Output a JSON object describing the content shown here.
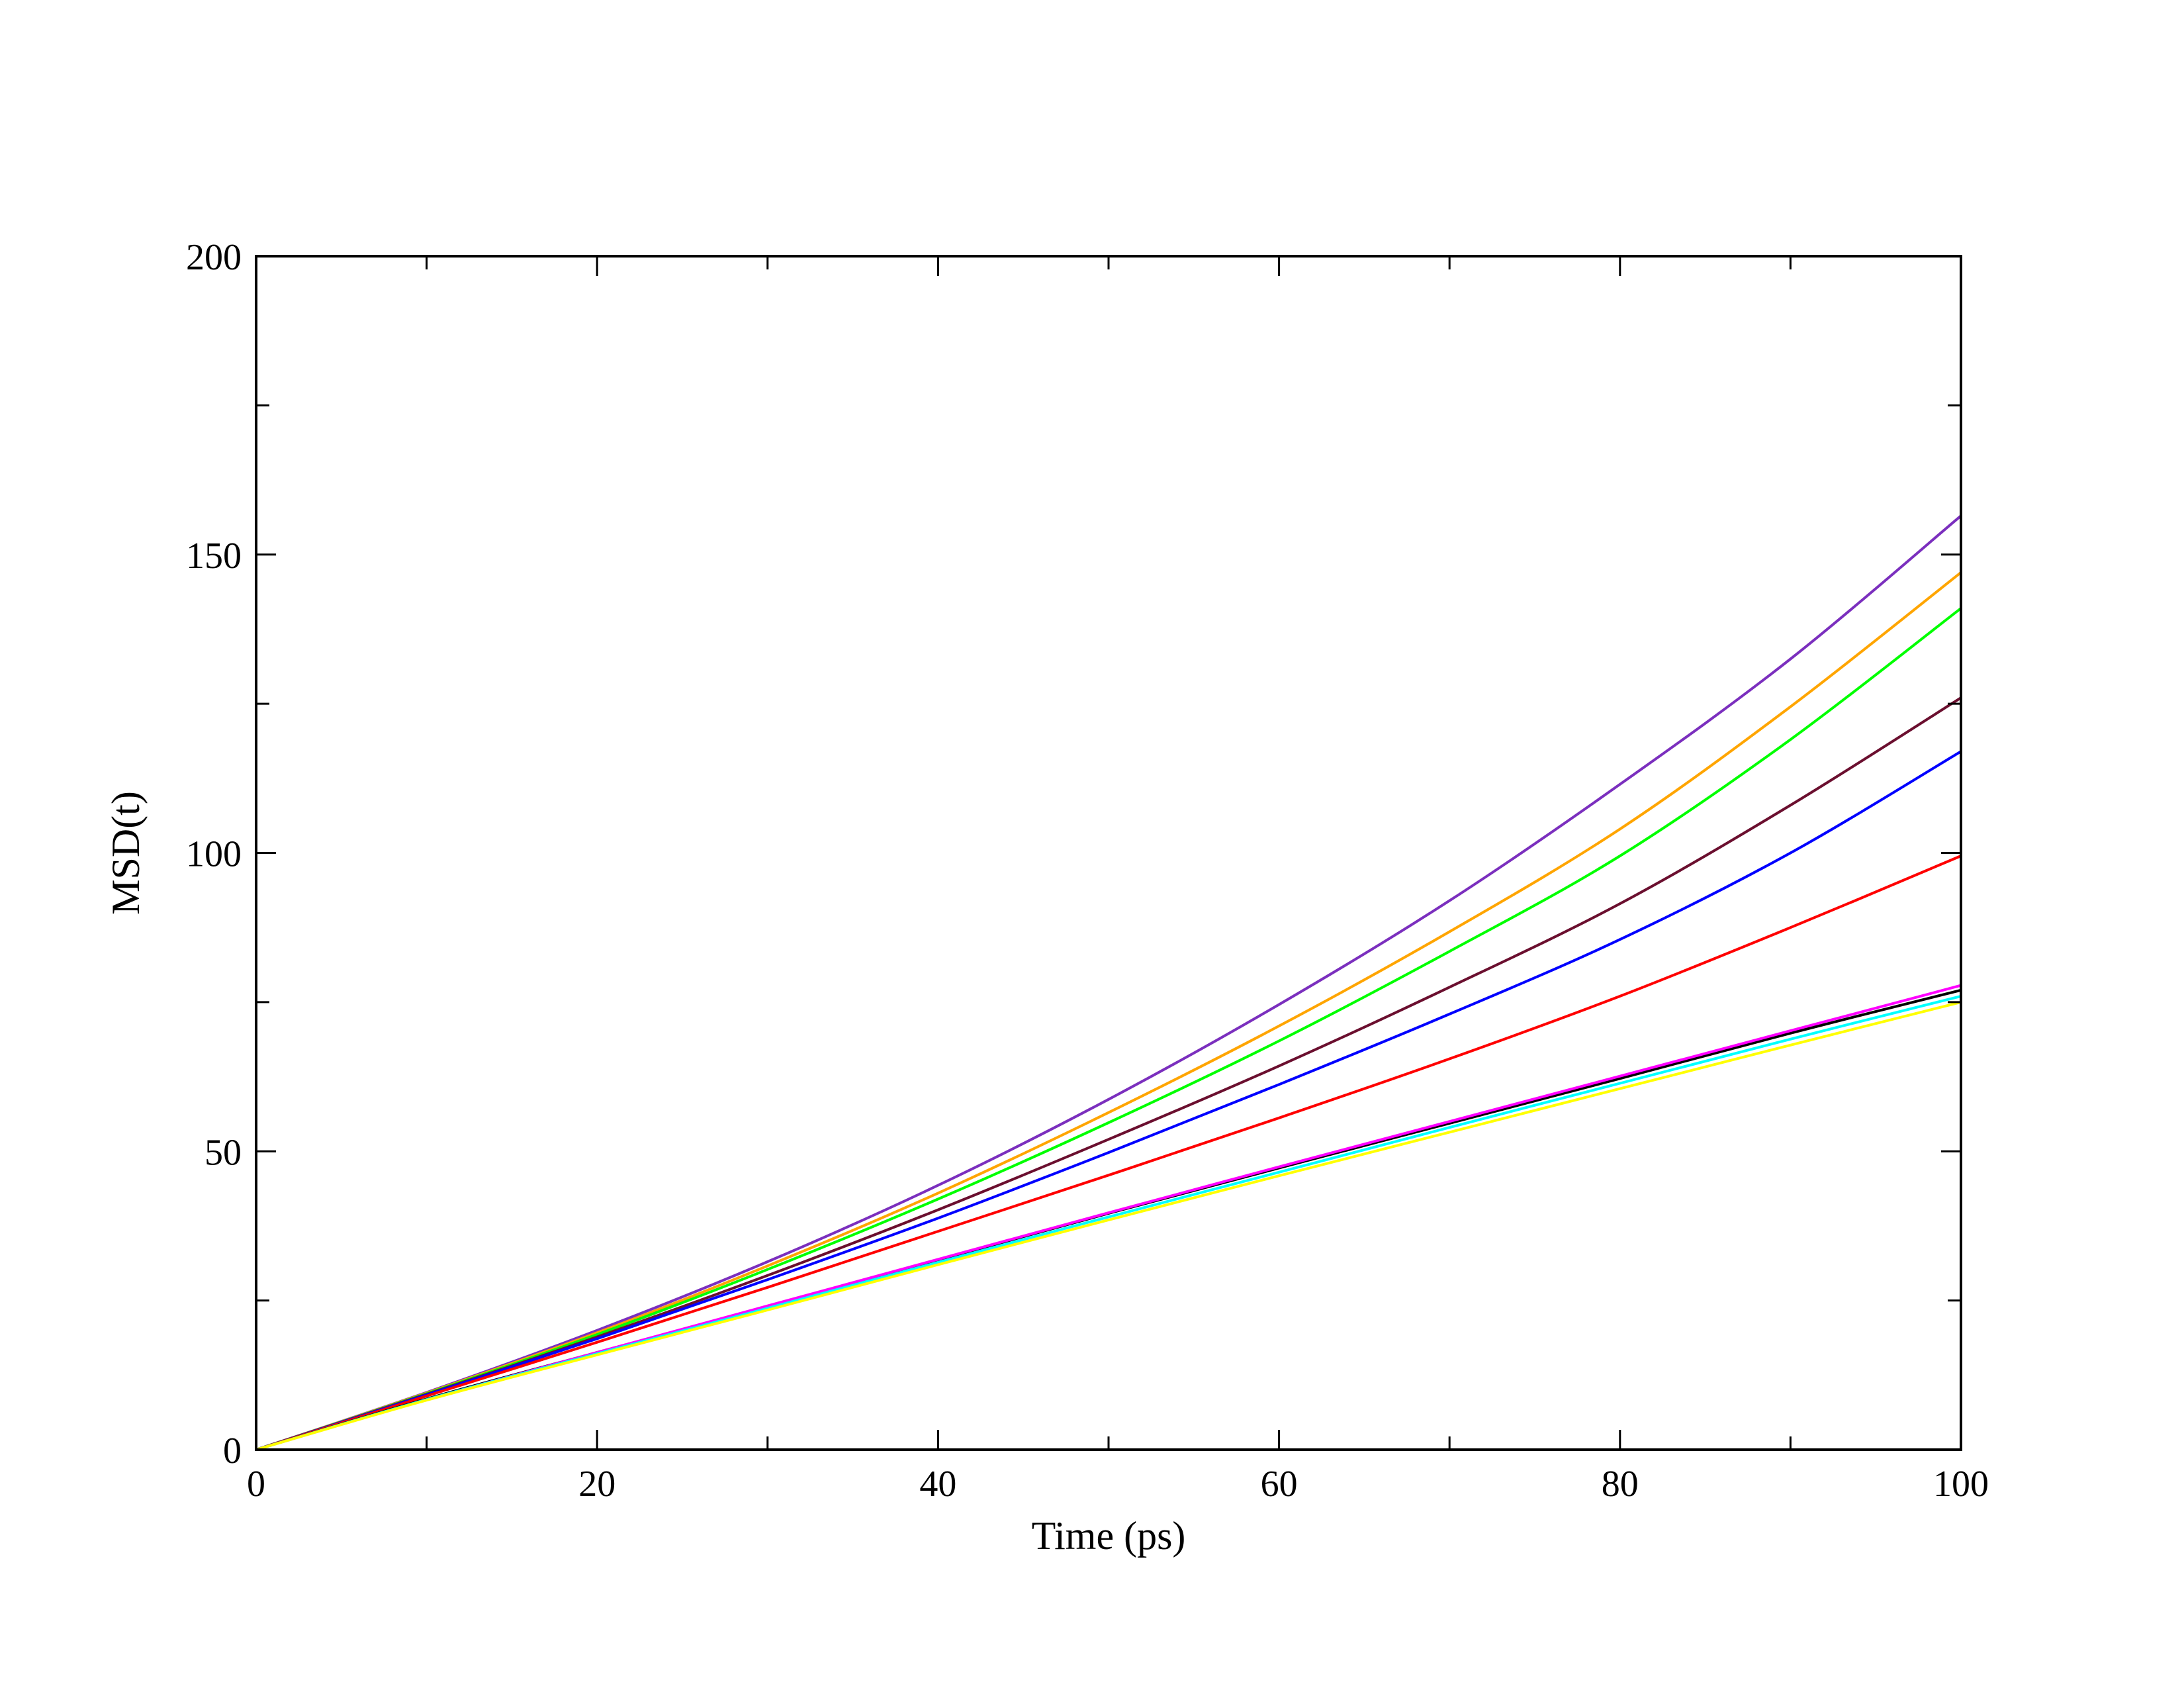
{
  "chart_data": {
    "type": "line",
    "title": "",
    "xlabel": "Time (ps)",
    "ylabel": "MSD(t)",
    "xlim": [
      0,
      100
    ],
    "ylim": [
      0,
      200
    ],
    "x_ticks": [
      0,
      20,
      40,
      60,
      80,
      100
    ],
    "y_ticks": [
      0,
      50,
      100,
      150,
      200
    ],
    "x_tick_labels": [
      "0",
      "20",
      "40",
      "60",
      "80",
      "100"
    ],
    "y_tick_labels": [
      "0",
      "50",
      "100",
      "150",
      "200"
    ],
    "grid": false,
    "legend": "none",
    "x": [
      0,
      10,
      20,
      30,
      40,
      50,
      60,
      70,
      80,
      90,
      100
    ],
    "series": [
      {
        "color": "#7b2fbe",
        "values": [
          0,
          9.6,
          20.0,
          31.5,
          44.3,
          58.7,
          74.6,
          92.0,
          111.5,
          132.5,
          156.5
        ]
      },
      {
        "color": "#ffa500",
        "values": [
          0,
          9.5,
          19.6,
          30.8,
          43.0,
          56.5,
          71.0,
          86.8,
          104.0,
          124.5,
          147.0
        ]
      },
      {
        "color": "#00ff00",
        "values": [
          0,
          9.4,
          19.3,
          30.2,
          42.0,
          54.8,
          68.5,
          83.5,
          99.5,
          119.0,
          141.0
        ]
      },
      {
        "color": "#6b0f2f",
        "values": [
          0,
          9.3,
          18.9,
          29.2,
          40.2,
          52.0,
          64.3,
          77.5,
          91.5,
          108.0,
          126.0
        ]
      },
      {
        "color": "#0000ff",
        "values": [
          0,
          9.2,
          18.6,
          28.5,
          38.8,
          49.8,
          61.2,
          73.0,
          85.5,
          100.0,
          117.0
        ]
      },
      {
        "color": "#ff0000",
        "values": [
          0,
          9.0,
          18.0,
          27.2,
          36.6,
          46.0,
          55.6,
          65.5,
          76.0,
          87.5,
          99.5
        ]
      },
      {
        "color": "#000000",
        "values": [
          0,
          8.5,
          16.3,
          24.0,
          31.8,
          39.6,
          47.2,
          54.7,
          62.2,
          69.8,
          77.0
        ]
      },
      {
        "color": "#ff00ff",
        "values": [
          0,
          8.4,
          16.3,
          24.1,
          31.9,
          39.7,
          47.4,
          55.0,
          62.6,
          70.2,
          77.8
        ]
      },
      {
        "color": "#00ffff",
        "values": [
          0,
          8.4,
          16.1,
          23.7,
          31.4,
          39.0,
          46.5,
          54.0,
          61.4,
          68.8,
          76.0
        ]
      },
      {
        "color": "#ffff00",
        "values": [
          0,
          8.3,
          15.9,
          23.4,
          31.0,
          38.5,
          45.9,
          53.2,
          60.5,
          67.8,
          75.0
        ]
      }
    ]
  }
}
